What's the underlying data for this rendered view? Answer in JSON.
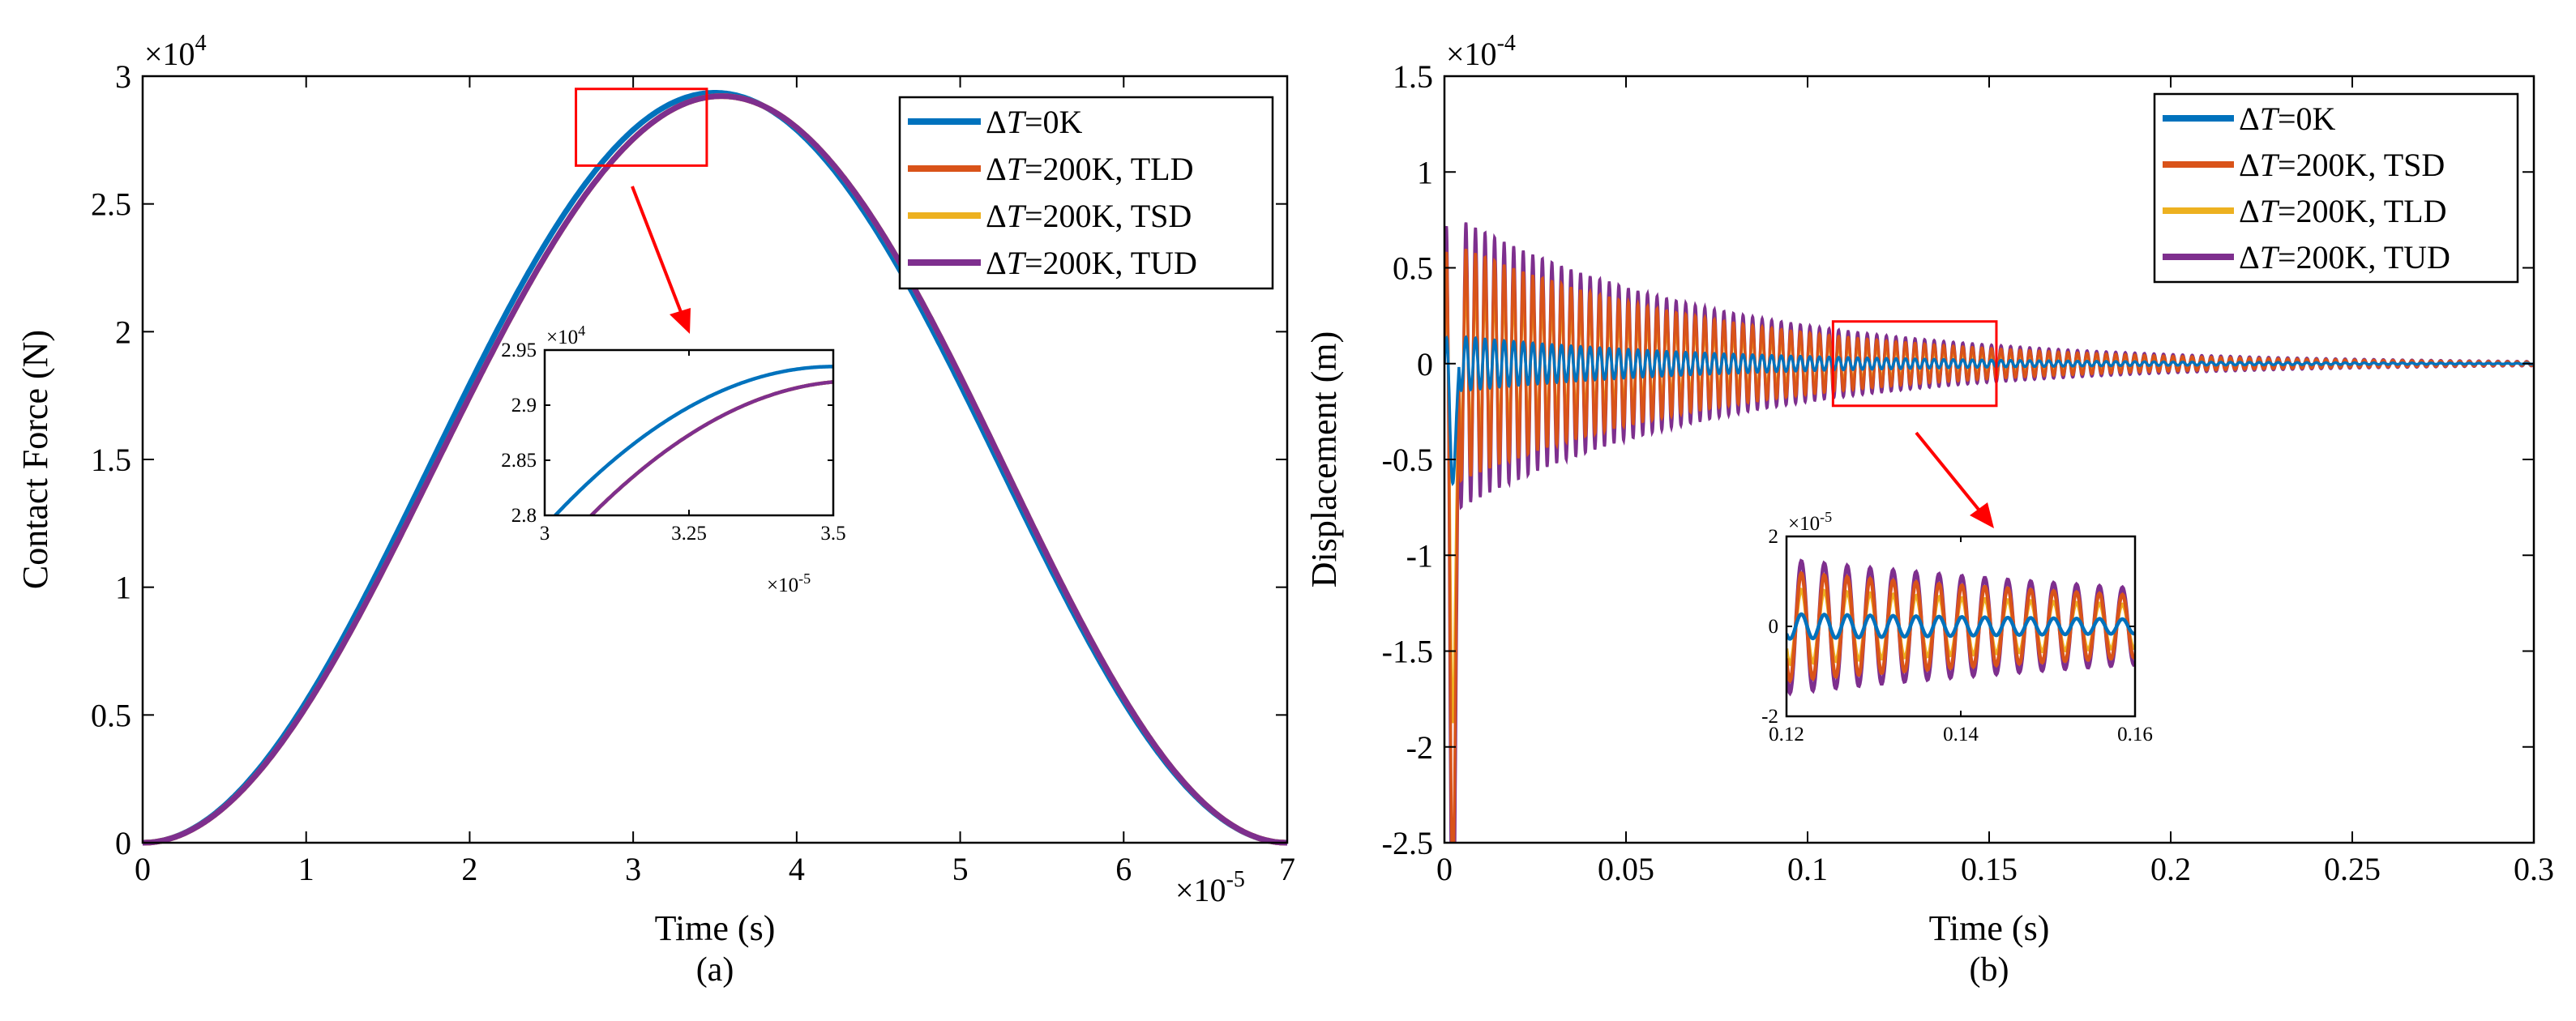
{
  "chart_data": [
    {
      "type": "line",
      "panel_label": "(a)",
      "xlabel": "Time (s)",
      "ylabel": "Contact Force (N)",
      "x_exponent": "×10",
      "x_exponent_power": "-5",
      "y_exponent": "×10",
      "y_exponent_power": "4",
      "xlim": [
        0,
        7
      ],
      "ylim": [
        0,
        3
      ],
      "x_ticks": [
        "0",
        "1",
        "2",
        "3",
        "4",
        "5",
        "6",
        "7"
      ],
      "y_ticks": [
        "0",
        "0.5",
        "1",
        "1.5",
        "2",
        "2.5",
        "3"
      ],
      "peak_time": 3.5,
      "duration": 7.0,
      "series": [
        {
          "name_delta": "Δ",
          "name_T": "T",
          "name_rest": "=0K",
          "color": "#0072BD",
          "peak": 2.935,
          "shift": 0.0
        },
        {
          "name_delta": "Δ",
          "name_T": "T",
          "name_rest": "=200K, TLD",
          "color": "#D95319",
          "peak": 2.922,
          "shift": 0.04
        },
        {
          "name_delta": "Δ",
          "name_T": "T",
          "name_rest": "=200K, TSD",
          "color": "#EDB120",
          "peak": 2.922,
          "shift": 0.04
        },
        {
          "name_delta": "Δ",
          "name_T": "T",
          "name_rest": "=200K, TUD",
          "color": "#7E2F8E",
          "peak": 2.922,
          "shift": 0.04
        }
      ],
      "highlight_box": {
        "x_range": [
          2.65,
          3.45
        ],
        "y_range": [
          2.65,
          2.95
        ]
      },
      "inset": {
        "xlim": [
          3.0,
          3.5
        ],
        "ylim": [
          2.8,
          2.95
        ],
        "x_ticks": [
          "3",
          "3.25",
          "3.5"
        ],
        "y_ticks": [
          "2.8",
          "2.85",
          "2.9",
          "2.95"
        ],
        "x_exponent": "×10",
        "x_exponent_power": "-5",
        "y_exponent": "×10",
        "y_exponent_power": "4"
      }
    },
    {
      "type": "line",
      "panel_label": "(b)",
      "xlabel": "Time (s)",
      "ylabel": "Displacement (m)",
      "y_exponent": "×10",
      "y_exponent_power": "-4",
      "xlim": [
        0,
        0.3
      ],
      "ylim": [
        -2.5,
        1.5
      ],
      "x_ticks": [
        "0",
        "0.05",
        "0.1",
        "0.15",
        "0.2",
        "0.25",
        "0.3"
      ],
      "y_ticks": [
        "-2.5",
        "-2",
        "-1.5",
        "-1",
        "-0.5",
        "0",
        "0.5",
        "1",
        "1.5"
      ],
      "frequency_hz": 380,
      "decay_rate": 14,
      "series": [
        {
          "name_delta": "Δ",
          "name_T": "T",
          "name_rest": "=0K",
          "color": "#0072BD",
          "amplitude": 0.15
        },
        {
          "name_delta": "Δ",
          "name_T": "T",
          "name_rest": "=200K, TSD",
          "color": "#D95319",
          "amplitude": 0.65
        },
        {
          "name_delta": "Δ",
          "name_T": "T",
          "name_rest": "=200K, TLD",
          "color": "#EDB120",
          "amplitude": 0.45
        },
        {
          "name_delta": "Δ",
          "name_T": "T",
          "name_rest": "=200K, TUD",
          "color": "#7E2F8E",
          "amplitude": 0.8
        }
      ],
      "highlight_box": {
        "x_range": [
          0.107,
          0.152
        ],
        "y_range": [
          -0.22,
          0.22
        ]
      },
      "inset": {
        "xlim": [
          0.12,
          0.16
        ],
        "ylim": [
          -2,
          2
        ],
        "x_ticks": [
          "0.12",
          "0.14",
          "0.16"
        ],
        "y_ticks": [
          "-2",
          "0",
          "2"
        ],
        "y_exponent": "×10",
        "y_exponent_power": "-5"
      }
    }
  ]
}
